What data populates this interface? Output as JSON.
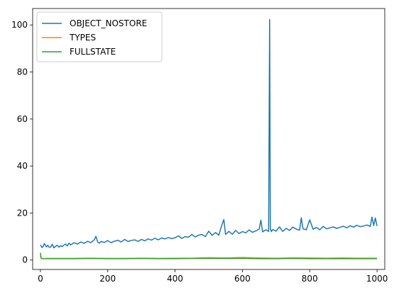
{
  "chart_data": {
    "type": "line",
    "title": "",
    "xlabel": "",
    "ylabel": "",
    "xlim": [
      -23,
      1023
    ],
    "ylim": [
      -4,
      107
    ],
    "xticks": [
      0,
      200,
      400,
      600,
      800,
      1000
    ],
    "yticks": [
      0,
      20,
      40,
      60,
      80,
      100
    ],
    "grid": false,
    "legend_position": "top-left",
    "series": [
      {
        "name": "OBJECT_NOSTORE",
        "color": "#1f77b4",
        "x": [
          0,
          5,
          8,
          12,
          18,
          22,
          26,
          30,
          35,
          40,
          45,
          50,
          55,
          60,
          65,
          70,
          75,
          80,
          85,
          90,
          95,
          100,
          110,
          120,
          130,
          140,
          150,
          160,
          165,
          170,
          175,
          180,
          190,
          200,
          210,
          220,
          230,
          240,
          250,
          260,
          270,
          280,
          290,
          300,
          310,
          320,
          330,
          340,
          350,
          360,
          370,
          380,
          390,
          400,
          410,
          420,
          430,
          440,
          450,
          460,
          470,
          480,
          490,
          500,
          510,
          520,
          530,
          540,
          545,
          550,
          560,
          570,
          580,
          590,
          600,
          610,
          620,
          630,
          640,
          650,
          655,
          660,
          670,
          678,
          681,
          683,
          686,
          690,
          700,
          710,
          720,
          730,
          740,
          750,
          760,
          770,
          775,
          780,
          790,
          800,
          810,
          820,
          830,
          840,
          850,
          860,
          870,
          880,
          890,
          900,
          910,
          920,
          930,
          940,
          950,
          960,
          970,
          980,
          985,
          990,
          995,
          1000
        ],
        "y": [
          6.5,
          5.3,
          5.8,
          7.0,
          5.6,
          6.3,
          5.5,
          5.4,
          6.7,
          5.2,
          5.8,
          6.3,
          5.5,
          6.1,
          5.7,
          6.4,
          6.8,
          6.0,
          7.2,
          6.5,
          6.9,
          7.4,
          6.8,
          7.7,
          7.1,
          8.0,
          7.4,
          8.6,
          10.1,
          7.8,
          7.2,
          7.9,
          7.5,
          8.3,
          7.4,
          8.0,
          8.4,
          7.7,
          8.8,
          7.9,
          8.3,
          8.6,
          7.9,
          8.8,
          8.2,
          9.0,
          8.5,
          9.3,
          8.6,
          9.4,
          9.0,
          9.6,
          9.1,
          9.5,
          10.3,
          9.2,
          10.0,
          9.7,
          10.9,
          9.8,
          10.6,
          10.9,
          10.0,
          12.3,
          10.5,
          11.7,
          10.6,
          15.4,
          17.2,
          10.9,
          12.2,
          11.0,
          12.6,
          11.3,
          12.1,
          11.6,
          12.8,
          11.8,
          12.4,
          13.2,
          17.0,
          12.0,
          12.9,
          12.2,
          102.3,
          13.5,
          12.1,
          13.0,
          12.3,
          14.1,
          12.2,
          13.5,
          12.6,
          14.0,
          13.2,
          12.7,
          18.0,
          13.3,
          12.9,
          17.1,
          13.1,
          13.9,
          12.9,
          14.3,
          13.3,
          13.7,
          14.1,
          13.5,
          13.9,
          14.4,
          13.7,
          14.6,
          14.0,
          14.8,
          14.2,
          14.5,
          14.9,
          14.3,
          18.3,
          14.7,
          17.9,
          14.5
        ]
      },
      {
        "name": "TYPES",
        "color": "#ff7f0e",
        "x": [
          0,
          2,
          5,
          20,
          50,
          100,
          150,
          200,
          250,
          300,
          350,
          400,
          450,
          500,
          550,
          600,
          650,
          700,
          750,
          800,
          850,
          900,
          950,
          1000
        ],
        "y": [
          1.8,
          0.9,
          0.6,
          0.7,
          0.7,
          0.7,
          0.8,
          0.7,
          0.7,
          0.8,
          0.7,
          0.8,
          0.8,
          1.0,
          0.9,
          1.1,
          0.9,
          0.8,
          0.9,
          0.9,
          0.8,
          0.9,
          0.8,
          0.8
        ]
      },
      {
        "name": "FULLSTATE",
        "color": "#2ca02c",
        "x": [
          0,
          2,
          5,
          20,
          50,
          100,
          150,
          200,
          250,
          300,
          350,
          400,
          450,
          500,
          550,
          600,
          650,
          700,
          750,
          800,
          850,
          900,
          950,
          1000
        ],
        "y": [
          3.1,
          0.8,
          0.6,
          0.6,
          0.6,
          0.6,
          0.7,
          0.6,
          0.6,
          0.7,
          0.6,
          0.6,
          0.7,
          0.7,
          0.7,
          0.7,
          0.6,
          0.6,
          0.7,
          0.6,
          0.6,
          0.6,
          0.6,
          0.6
        ]
      }
    ]
  }
}
